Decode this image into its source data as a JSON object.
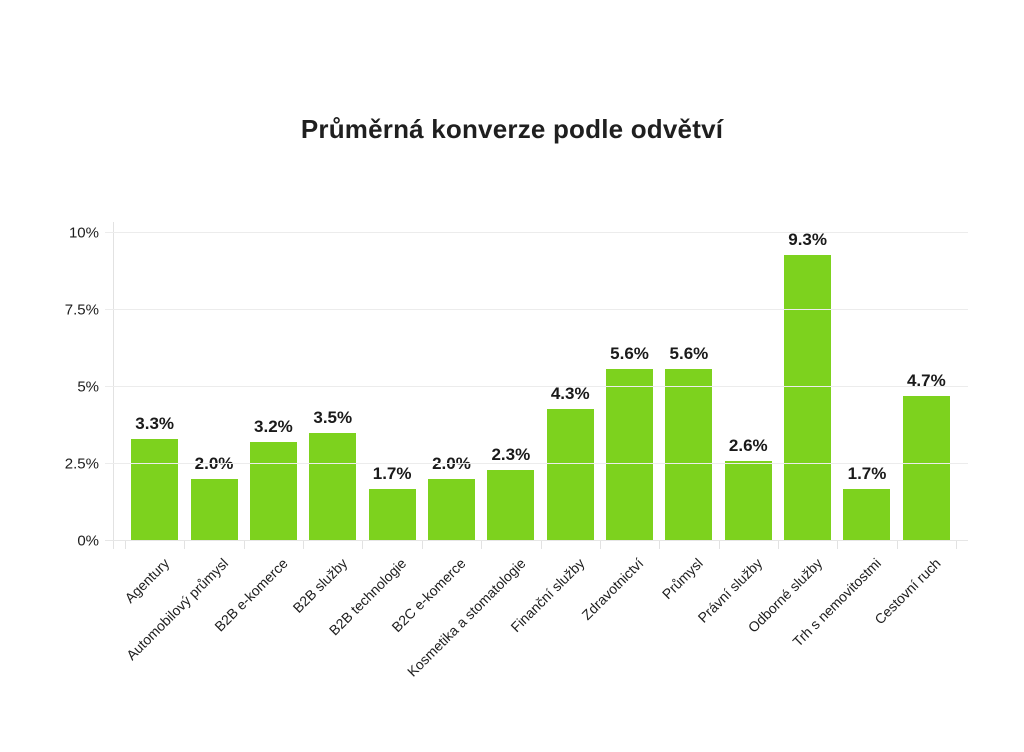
{
  "title": "Průměrná konverze podle odvětví",
  "chart_data": {
    "type": "bar",
    "title": "Průměrná konverze podle odvětví",
    "categories": [
      "Agentury",
      "Automobilový průmysl",
      "B2B e-komerce",
      "B2B služby",
      "B2B technologie",
      "B2C e-komerce",
      "Kosmetika a stomatologie",
      "Finanční služby",
      "Zdravotnictví",
      "Průmysl",
      "Právní služby",
      "Odborné služby",
      "Trh s nemovitostmi",
      "Cestovní ruch"
    ],
    "values": [
      3.3,
      2.0,
      3.2,
      3.5,
      1.7,
      2.0,
      2.3,
      4.3,
      5.6,
      5.6,
      2.6,
      9.3,
      1.7,
      4.7
    ],
    "value_labels": [
      "3.3%",
      "2.0%",
      "3.2%",
      "3.5%",
      "1.7%",
      "2.0%",
      "2.3%",
      "4.3%",
      "5.6%",
      "5.6%",
      "2.6%",
      "9.3%",
      "1.7%",
      "4.7%"
    ],
    "xlabel": "",
    "ylabel": "",
    "ylim": [
      0,
      10
    ],
    "y_ticks": [
      {
        "value": 0,
        "label": "0%"
      },
      {
        "value": 2.5,
        "label": "2.5%"
      },
      {
        "value": 5,
        "label": "5%"
      },
      {
        "value": 7.5,
        "label": "7.5%"
      },
      {
        "value": 10,
        "label": "10%"
      }
    ],
    "grid": true,
    "legend_position": "none",
    "colors": {
      "bar": "#7dd21e",
      "gridline": "#ececec",
      "axis": "#e2e2e2",
      "text": "#1d1d1d",
      "background": "#ffffff"
    }
  }
}
